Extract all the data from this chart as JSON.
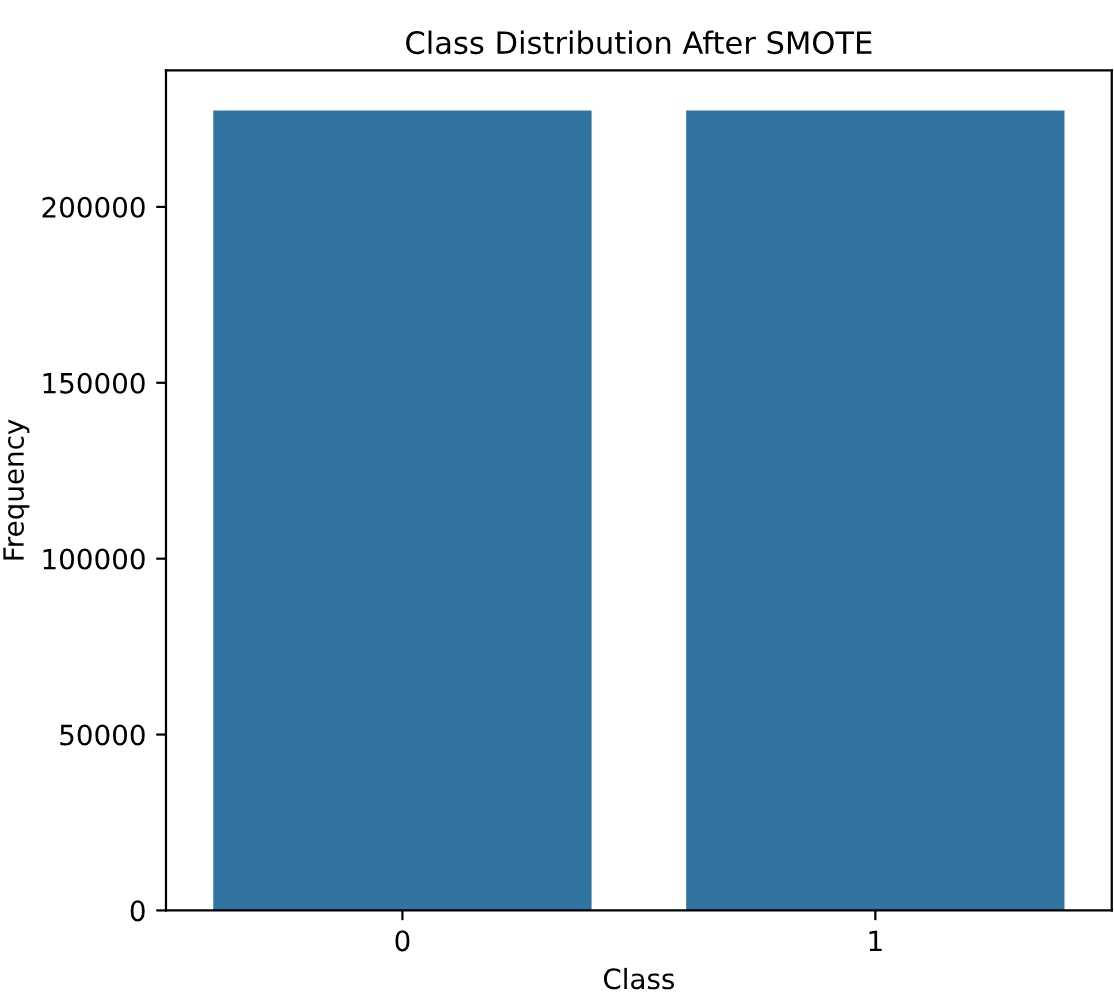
{
  "chart_data": {
    "type": "bar",
    "title": "Class Distribution After SMOTE",
    "xlabel": "Class",
    "ylabel": "Frequency",
    "categories": [
      "0",
      "1"
    ],
    "values": [
      227400,
      227400
    ],
    "color": "#3274a1",
    "ylim": [
      0,
      238800
    ],
    "yticks": [
      0,
      50000,
      100000,
      150000,
      200000
    ],
    "grid": false,
    "legend": false
  }
}
